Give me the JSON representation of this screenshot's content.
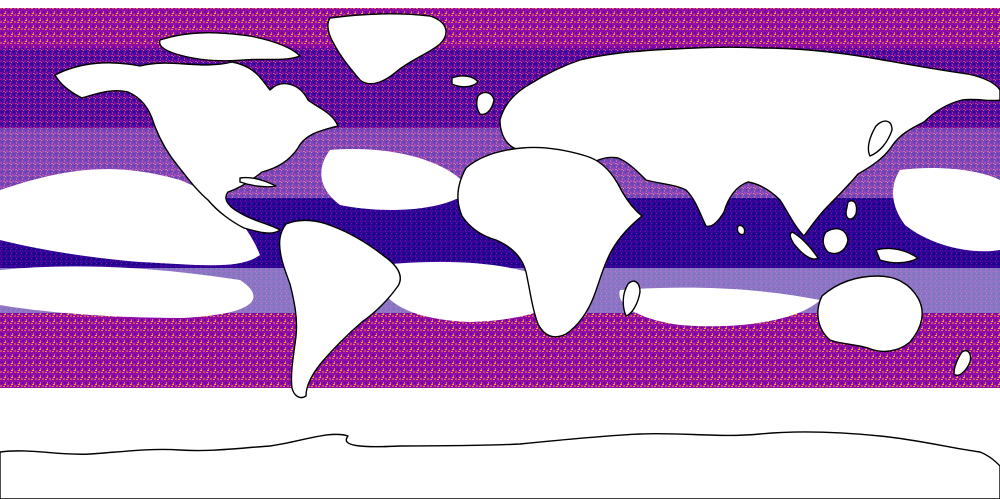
{
  "map": {
    "projection": "equirectangular",
    "background_color": "#ffffff",
    "land_color": "#ffffff",
    "coastline_color": "#000000",
    "no_data_color": "#ffffff",
    "colormap": "plasma",
    "colormap_stops": [
      "#0d0887",
      "#41049d",
      "#6a00a8",
      "#8f0da4",
      "#b12a90",
      "#cc4778",
      "#e16462",
      "#f2844b",
      "#fca636",
      "#fcce25"
    ],
    "data_latitude_range_deg": [
      -59,
      90
    ],
    "continents": [
      "north-america",
      "greenland",
      "south-america",
      "europe",
      "africa",
      "asia",
      "madagascar",
      "australia",
      "new-zealand",
      "antarctica",
      "indonesia",
      "japan",
      "uk",
      "iceland",
      "new-guinea",
      "borneo",
      "sumatra",
      "philippines",
      "cuba",
      "sri-lanka"
    ]
  }
}
